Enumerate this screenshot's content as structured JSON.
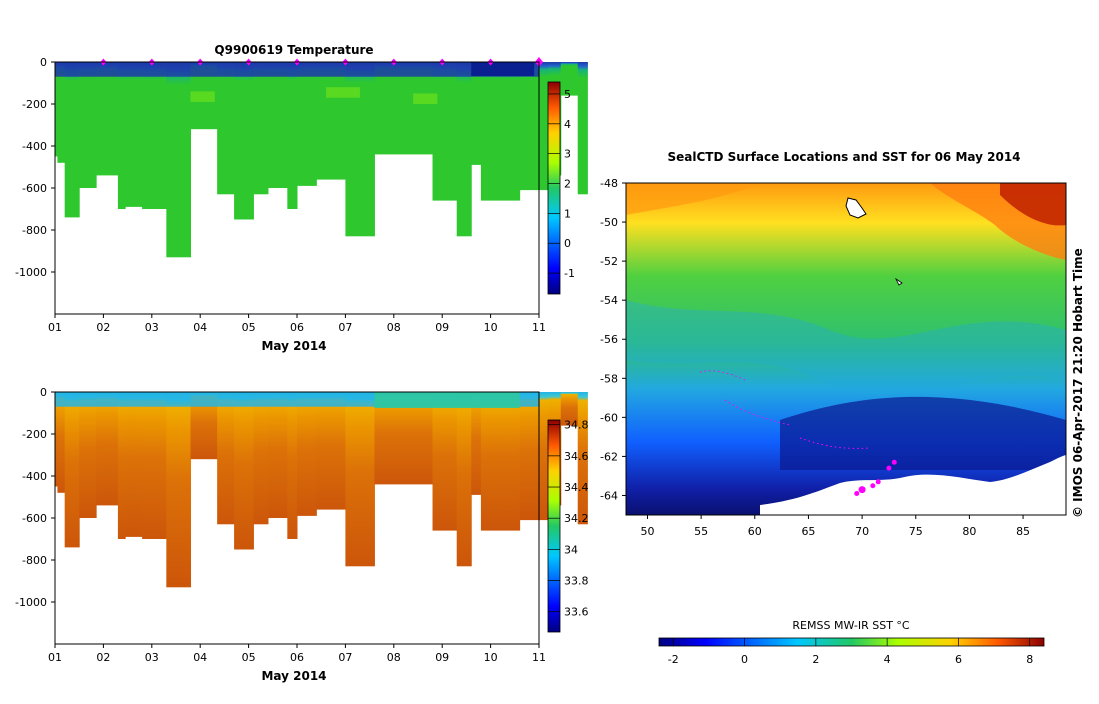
{
  "chart_data": [
    {
      "type": "heatmap",
      "title": "Q9900619  Temperature",
      "xlabel": "May 2014",
      "x_ticks": [
        "01",
        "02",
        "03",
        "04",
        "05",
        "06",
        "07",
        "08",
        "09",
        "10",
        "11"
      ],
      "y_ticks": [
        0,
        -200,
        -400,
        -600,
        -800,
        -1000
      ],
      "ylim": [
        -1200,
        0
      ],
      "colorbar": {
        "ticks": [
          5,
          4,
          3,
          2,
          1,
          0,
          -1
        ],
        "range": [
          -1.7,
          5.4
        ]
      },
      "profile_days": [
        2.0,
        3.0,
        4.0,
        5.0,
        6.0,
        7.0,
        8.0,
        9.0,
        10.0,
        11.0
      ],
      "surface_value": -0.5,
      "deep_value": 1.8
    },
    {
      "type": "heatmap",
      "xlabel": "May 2014",
      "x_ticks": [
        "01",
        "02",
        "03",
        "04",
        "05",
        "06",
        "07",
        "08",
        "09",
        "10",
        "11"
      ],
      "y_ticks": [
        0,
        -200,
        -400,
        -600,
        -800,
        -1000
      ],
      "ylim": [
        -1200,
        0
      ],
      "colorbar": {
        "ticks": [
          34.8,
          34.6,
          34.4,
          34.2,
          34,
          33.8,
          33.6
        ],
        "range": [
          33.47,
          34.83
        ]
      },
      "surface_value": 33.9,
      "deep_value": 34.7
    },
    {
      "type": "heatmap",
      "title": "SealCTD Surface Locations and SST for 06 May 2014",
      "x_ticks": [
        "50",
        "55",
        "60",
        "65",
        "70",
        "75",
        "80",
        "85"
      ],
      "y_ticks": [
        "-48",
        "-50",
        "-52",
        "-54",
        "-56",
        "-58",
        "-60",
        "-62",
        "-64"
      ],
      "xlim": [
        48,
        89
      ],
      "ylim": [
        -65,
        -48
      ],
      "colorbar_label": "REMSS MW-IR SST °C",
      "colorbar": {
        "ticks": [
          "-2",
          "0",
          "2",
          "4",
          "6",
          "8"
        ],
        "range": [
          -2.4,
          8.4
        ]
      },
      "credit": "© IMOS 06-Apr-2017 21:20 Hobart Time",
      "seal_track_color": "#ff00ff",
      "seal_locations": [
        [
          70.0,
          -63.7
        ],
        [
          71.5,
          -63.3
        ],
        [
          73.0,
          -62.3
        ],
        [
          72.5,
          -62.6
        ],
        [
          69.5,
          -63.9
        ],
        [
          71.0,
          -63.5
        ]
      ]
    }
  ],
  "colors": {
    "temperature_surface": "#1c3aa8",
    "temperature_deep": "#2ec82e",
    "salinity_surface": "#22b4e6",
    "salinity_deep": "#d25a0a",
    "marker": "#ff00ff"
  }
}
